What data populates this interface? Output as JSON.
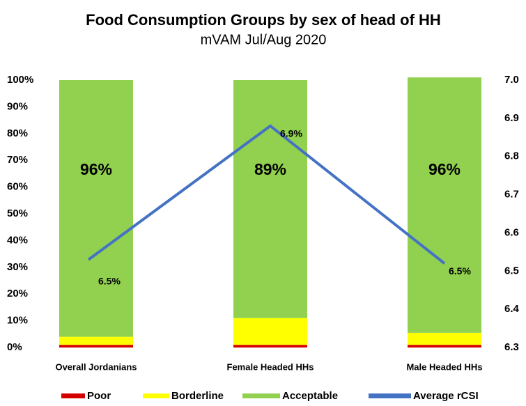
{
  "chart_data": {
    "type": "bar",
    "stacked": true,
    "title": "Food Consumption Groups by sex of head of HH",
    "subtitle": "mVAM Jul/Aug 2020",
    "categories": [
      "Overall Jordanians",
      "Female Headed HHs",
      "Male Headed HHs"
    ],
    "series": [
      {
        "name": "Poor",
        "color": "#d40000",
        "values": [
          1,
          1,
          1
        ]
      },
      {
        "name": "Borderline",
        "color": "#ffff00",
        "values": [
          3,
          10,
          4.5
        ]
      },
      {
        "name": "Acceptable",
        "color": "#92d050",
        "values": [
          96,
          89,
          95.5
        ],
        "value_labels": [
          "96%",
          "89%",
          "96%"
        ]
      },
      {
        "name": "Average rCSI",
        "color": "#4472c4",
        "type": "line",
        "axis": "y2",
        "values": [
          6.53,
          6.88,
          6.52
        ],
        "value_labels": [
          "6.5%",
          "6.9%",
          "6.5%"
        ]
      }
    ],
    "ylim": [
      0,
      100
    ],
    "yticks": [
      {
        "value": 0,
        "label": "0%"
      },
      {
        "value": 10,
        "label": "10%"
      },
      {
        "value": 20,
        "label": "20%"
      },
      {
        "value": 30,
        "label": "30%"
      },
      {
        "value": 40,
        "label": "40%"
      },
      {
        "value": 50,
        "label": "50%"
      },
      {
        "value": 60,
        "label": "60%"
      },
      {
        "value": 70,
        "label": "70%"
      },
      {
        "value": 80,
        "label": "80%"
      },
      {
        "value": 90,
        "label": "90%"
      },
      {
        "value": 100,
        "label": "100%"
      }
    ],
    "y2lim": [
      6.3,
      7.0
    ],
    "y2ticks": [
      6.3,
      6.4,
      6.5,
      6.6,
      6.7,
      6.8,
      6.9,
      {
        "value": 7,
        "label": "7.0"
      }
    ],
    "legend": "bottom",
    "grid": false
  }
}
